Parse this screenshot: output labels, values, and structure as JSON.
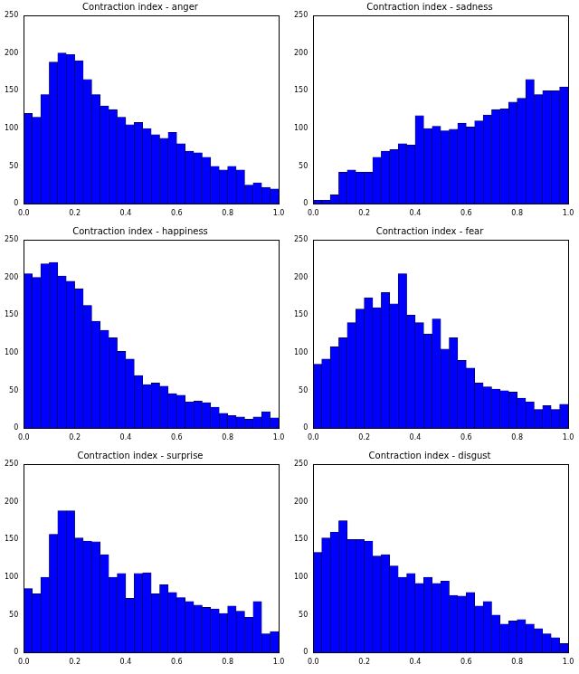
{
  "chart_data": [
    {
      "type": "histogram",
      "title": "Contraction index - anger",
      "bins": [
        0,
        0.0333,
        0.0667,
        0.1,
        0.1333,
        0.1667,
        0.2,
        0.2333,
        0.2667,
        0.3,
        0.3333,
        0.3667,
        0.4,
        0.4333,
        0.4667,
        0.5,
        0.5333,
        0.5667,
        0.6,
        0.6333,
        0.6667,
        0.7,
        0.7333,
        0.7667,
        0.8,
        0.8333,
        0.8667,
        0.9,
        0.9333,
        0.9667,
        1
      ],
      "values": [
        120,
        115,
        145,
        188,
        200,
        198,
        190,
        165,
        145,
        130,
        125,
        115,
        105,
        108,
        100,
        92,
        87,
        95,
        80,
        70,
        68,
        62,
        50,
        45,
        50,
        45,
        25,
        28,
        22,
        20
      ],
      "color": "#0000ff",
      "xlim": [
        0,
        1
      ],
      "ylim": [
        0,
        250
      ],
      "xticks": [
        {
          "value": 0,
          "label": "0.0"
        },
        0.2,
        0.4,
        0.6,
        0.8,
        {
          "value": 1,
          "label": "1.0"
        }
      ],
      "yticks": [
        0,
        50,
        100,
        150,
        200,
        250
      ],
      "grid": false
    },
    {
      "type": "histogram",
      "title": "Contraction index - sadness",
      "bins": [
        0,
        0.0333,
        0.0667,
        0.1,
        0.1333,
        0.1667,
        0.2,
        0.2333,
        0.2667,
        0.3,
        0.3333,
        0.3667,
        0.4,
        0.4333,
        0.4667,
        0.5,
        0.5333,
        0.5667,
        0.6,
        0.6333,
        0.6667,
        0.7,
        0.7333,
        0.7667,
        0.8,
        0.8333,
        0.8667,
        0.9,
        0.9333,
        0.9667,
        1
      ],
      "values": [
        5,
        5,
        12,
        42,
        45,
        42,
        42,
        62,
        70,
        72,
        80,
        78,
        117,
        100,
        103,
        97,
        99,
        107,
        102,
        110,
        118,
        125,
        126,
        135,
        140,
        165,
        145,
        150,
        150,
        155
      ],
      "color": "#0000ff",
      "xlim": [
        0,
        1
      ],
      "ylim": [
        0,
        250
      ],
      "xticks": [
        {
          "value": 0,
          "label": "0.0"
        },
        0.2,
        0.4,
        0.6,
        0.8,
        {
          "value": 1,
          "label": "1.0"
        }
      ],
      "yticks": [
        0,
        50,
        100,
        150,
        200,
        250
      ],
      "grid": false
    },
    {
      "type": "histogram",
      "title": "Contraction index - happiness",
      "bins": [
        0,
        0.0333,
        0.0667,
        0.1,
        0.1333,
        0.1667,
        0.2,
        0.2333,
        0.2667,
        0.3,
        0.3333,
        0.3667,
        0.4,
        0.4333,
        0.4667,
        0.5,
        0.5333,
        0.5667,
        0.6,
        0.6333,
        0.6667,
        0.7,
        0.7333,
        0.7667,
        0.8,
        0.8333,
        0.8667,
        0.9,
        0.9333,
        0.9667,
        1
      ],
      "values": [
        205,
        200,
        218,
        220,
        202,
        195,
        185,
        163,
        142,
        130,
        120,
        102,
        92,
        70,
        58,
        60,
        56,
        46,
        44,
        35,
        36,
        34,
        28,
        20,
        17,
        15,
        12,
        15,
        22,
        14
      ],
      "color": "#0000ff",
      "xlim": [
        0,
        1
      ],
      "ylim": [
        0,
        250
      ],
      "xticks": [
        {
          "value": 0,
          "label": "0.0"
        },
        0.2,
        0.4,
        0.6,
        0.8,
        {
          "value": 1,
          "label": "1.0"
        }
      ],
      "yticks": [
        0,
        50,
        100,
        150,
        200,
        250
      ],
      "grid": false
    },
    {
      "type": "histogram",
      "title": "Contraction index - fear",
      "bins": [
        0,
        0.0333,
        0.0667,
        0.1,
        0.1333,
        0.1667,
        0.2,
        0.2333,
        0.2667,
        0.3,
        0.3333,
        0.3667,
        0.4,
        0.4333,
        0.4667,
        0.5,
        0.5333,
        0.5667,
        0.6,
        0.6333,
        0.6667,
        0.7,
        0.7333,
        0.7667,
        0.8,
        0.8333,
        0.8667,
        0.9,
        0.9333,
        0.9667,
        1
      ],
      "values": [
        85,
        92,
        108,
        120,
        140,
        158,
        173,
        160,
        180,
        165,
        205,
        150,
        140,
        125,
        145,
        105,
        120,
        90,
        80,
        60,
        55,
        52,
        50,
        48,
        40,
        35,
        25,
        30,
        25,
        32
      ],
      "color": "#0000ff",
      "xlim": [
        0,
        1
      ],
      "ylim": [
        0,
        250
      ],
      "xticks": [
        {
          "value": 0,
          "label": "0.0"
        },
        0.2,
        0.4,
        0.6,
        0.8,
        {
          "value": 1,
          "label": "1.0"
        }
      ],
      "yticks": [
        0,
        50,
        100,
        150,
        200,
        250
      ],
      "grid": false
    },
    {
      "type": "histogram",
      "title": "Contraction index - surprise",
      "bins": [
        0,
        0.0333,
        0.0667,
        0.1,
        0.1333,
        0.1667,
        0.2,
        0.2333,
        0.2667,
        0.3,
        0.3333,
        0.3667,
        0.4,
        0.4333,
        0.4667,
        0.5,
        0.5333,
        0.5667,
        0.6,
        0.6333,
        0.6667,
        0.7,
        0.7333,
        0.7667,
        0.8,
        0.8333,
        0.8667,
        0.9,
        0.9333,
        0.9667,
        1
      ],
      "values": [
        85,
        78,
        100,
        157,
        188,
        188,
        152,
        148,
        147,
        130,
        100,
        105,
        72,
        105,
        106,
        78,
        90,
        80,
        73,
        68,
        63,
        60,
        58,
        52,
        62,
        55,
        47,
        68,
        25,
        28
      ],
      "color": "#0000ff",
      "xlim": [
        0,
        1
      ],
      "ylim": [
        0,
        250
      ],
      "xticks": [
        {
          "value": 0,
          "label": "0.0"
        },
        0.2,
        0.4,
        0.6,
        0.8,
        {
          "value": 1,
          "label": "1.0"
        }
      ],
      "yticks": [
        0,
        50,
        100,
        150,
        200,
        250
      ],
      "grid": false
    },
    {
      "type": "histogram",
      "title": "Contraction index - disgust",
      "bins": [
        0,
        0.0333,
        0.0667,
        0.1,
        0.1333,
        0.1667,
        0.2,
        0.2333,
        0.2667,
        0.3,
        0.3333,
        0.3667,
        0.4,
        0.4333,
        0.4667,
        0.5,
        0.5333,
        0.5667,
        0.6,
        0.6333,
        0.6667,
        0.7,
        0.7333,
        0.7667,
        0.8,
        0.8333,
        0.8667,
        0.9,
        0.9333,
        0.9667,
        1
      ],
      "values": [
        133,
        152,
        160,
        175,
        150,
        150,
        148,
        128,
        130,
        115,
        100,
        105,
        92,
        100,
        92,
        95,
        76,
        75,
        80,
        62,
        68,
        50,
        38,
        42,
        44,
        38,
        32,
        25,
        20,
        12
      ],
      "color": "#0000ff",
      "xlim": [
        0,
        1
      ],
      "ylim": [
        0,
        250
      ],
      "xticks": [
        {
          "value": 0,
          "label": "0.0"
        },
        0.2,
        0.4,
        0.6,
        0.8,
        {
          "value": 1,
          "label": "1.0"
        }
      ],
      "yticks": [
        0,
        50,
        100,
        150,
        200,
        250
      ],
      "grid": false
    }
  ]
}
